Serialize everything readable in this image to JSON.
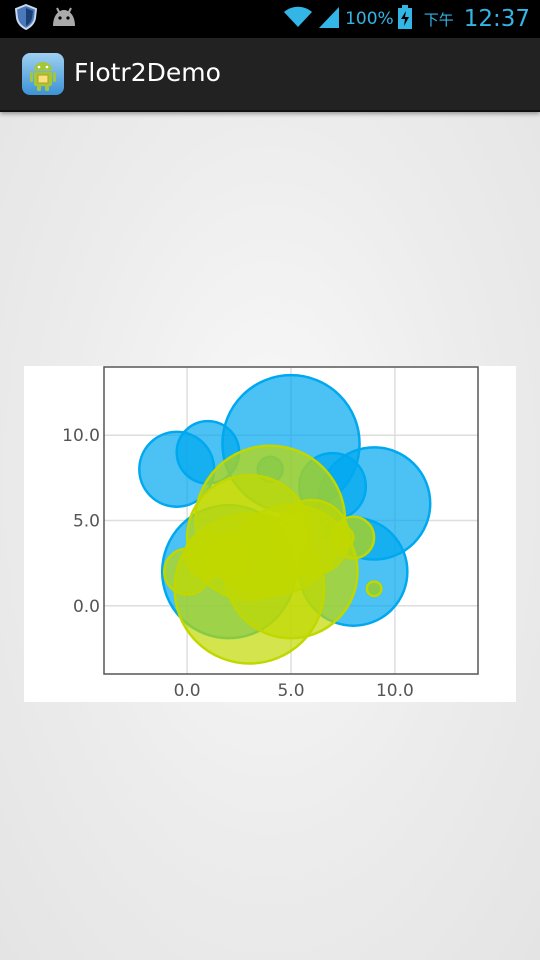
{
  "app": {
    "title": "Flotr2Demo"
  },
  "status_bar": {
    "battery_percent": "100%",
    "ampm": "下午",
    "time": "12:37",
    "icons": [
      "shield-icon",
      "android-notification-icon",
      "wifi-icon",
      "signal-icon",
      "battery-charging-icon"
    ]
  },
  "colors": {
    "series_blue": "#00a8f0",
    "series_green": "#c0d800"
  },
  "chart_data": {
    "type": "bubble",
    "xlim": [
      -4,
      14
    ],
    "ylim": [
      -4,
      14
    ],
    "x_ticks": [
      "0.0",
      "5.0",
      "10.0"
    ],
    "y_ticks": [
      "0.0",
      "5.0",
      "10.0"
    ],
    "x_tick_values": [
      0,
      5,
      10
    ],
    "y_tick_values": [
      0,
      5,
      10
    ],
    "grid": true,
    "series": [
      {
        "color": "#00a8f0",
        "points": [
          {
            "x": 5,
            "y": 9.5,
            "r": 3.3
          },
          {
            "x": 9,
            "y": 6,
            "r": 2.7
          },
          {
            "x": -0.5,
            "y": 8,
            "r": 1.8
          },
          {
            "x": 1,
            "y": 9,
            "r": 1.5
          },
          {
            "x": 7,
            "y": 7,
            "r": 1.6
          },
          {
            "x": 8,
            "y": 2,
            "r": 2.6
          },
          {
            "x": 2,
            "y": 2,
            "r": 3.2
          },
          {
            "x": 4,
            "y": 8,
            "r": 0.6
          },
          {
            "x": 9,
            "y": 1,
            "r": 0.35
          },
          {
            "x": 6.5,
            "y": 5,
            "r": 0.8
          }
        ]
      },
      {
        "color": "#c0d800",
        "points": [
          {
            "x": 3,
            "y": 1,
            "r": 3.6
          },
          {
            "x": 5,
            "y": 2,
            "r": 3.2
          },
          {
            "x": 4,
            "y": 5,
            "r": 3.6
          },
          {
            "x": 3,
            "y": 4,
            "r": 3.0
          },
          {
            "x": 6,
            "y": 4,
            "r": 1.8
          },
          {
            "x": 1,
            "y": 3,
            "r": 1.1
          },
          {
            "x": 0,
            "y": 2,
            "r": 1.1
          },
          {
            "x": 7.5,
            "y": 4,
            "r": 0.5
          },
          {
            "x": 8,
            "y": 4,
            "r": 1.0
          },
          {
            "x": 9,
            "y": 1,
            "r": 0.35
          },
          {
            "x": 2,
            "y": 3,
            "r": 1.0
          }
        ]
      }
    ]
  }
}
